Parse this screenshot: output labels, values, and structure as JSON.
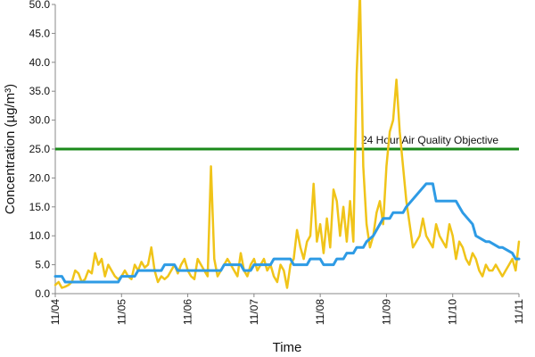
{
  "chart_data": {
    "type": "line",
    "title": "",
    "xlabel": "Time",
    "ylabel": "Concentration (µg/m³)",
    "ylim": [
      0,
      50
    ],
    "yticks": [
      "0.0",
      "5.0",
      "10.0",
      "15.0",
      "20.0",
      "25.0",
      "30.0",
      "35.0",
      "40.0",
      "45.0",
      "50.0"
    ],
    "xticks": [
      "11/04",
      "11/05",
      "11/06",
      "11/07",
      "11/08",
      "11/09",
      "11/10",
      "11/11"
    ],
    "xlim": [
      0,
      7
    ],
    "grid": false,
    "legend": "none",
    "reference_line": {
      "value": 25,
      "label": "24 Hour Air Quality Objective",
      "color": "#1a8a1a"
    },
    "series": [
      {
        "color": "#f0c419",
        "x": [
          0,
          0.05,
          0.1,
          0.15,
          0.2,
          0.25,
          0.3,
          0.35,
          0.4,
          0.45,
          0.5,
          0.55,
          0.6,
          0.65,
          0.7,
          0.75,
          0.8,
          0.85,
          0.9,
          0.95,
          1.0,
          1.05,
          1.1,
          1.15,
          1.2,
          1.25,
          1.3,
          1.35,
          1.4,
          1.45,
          1.5,
          1.55,
          1.6,
          1.65,
          1.7,
          1.75,
          1.8,
          1.85,
          1.9,
          1.95,
          2.0,
          2.05,
          2.1,
          2.15,
          2.2,
          2.25,
          2.3,
          2.35,
          2.4,
          2.45,
          2.5,
          2.55,
          2.6,
          2.65,
          2.7,
          2.75,
          2.8,
          2.85,
          2.9,
          2.95,
          3.0,
          3.05,
          3.1,
          3.15,
          3.2,
          3.25,
          3.3,
          3.35,
          3.4,
          3.45,
          3.5,
          3.55,
          3.6,
          3.65,
          3.7,
          3.75,
          3.8,
          3.85,
          3.9,
          3.95,
          4.0,
          4.05,
          4.1,
          4.15,
          4.2,
          4.25,
          4.3,
          4.35,
          4.4,
          4.45,
          4.5,
          4.55,
          4.6,
          4.65,
          4.7,
          4.75,
          4.8,
          4.85,
          4.9,
          4.95,
          5.0,
          5.05,
          5.1,
          5.15,
          5.2,
          5.25,
          5.3,
          5.35,
          5.4,
          5.45,
          5.5,
          5.55,
          5.6,
          5.65,
          5.7,
          5.75,
          5.8,
          5.85,
          5.9,
          5.95,
          6.0,
          6.05,
          6.1,
          6.15,
          6.2,
          6.25,
          6.3,
          6.35,
          6.4,
          6.45,
          6.5,
          6.55,
          6.6,
          6.65,
          6.7,
          6.75,
          6.8,
          6.85,
          6.9,
          6.95,
          7.0
        ],
        "values": [
          1.5,
          2,
          1,
          1.2,
          1.5,
          2,
          4,
          3.5,
          2,
          2.5,
          4,
          3.5,
          7,
          5,
          6,
          3,
          5,
          4,
          3,
          2.5,
          3,
          4,
          3,
          2.5,
          5,
          4,
          5.5,
          4.5,
          5,
          8,
          4,
          2,
          3,
          2.5,
          3,
          4,
          5,
          3.5,
          5,
          6,
          4,
          3,
          2.5,
          6,
          5,
          4,
          3,
          22,
          6,
          3,
          4,
          5,
          6,
          5,
          4,
          3,
          7,
          4,
          3,
          5,
          6,
          4,
          5,
          6,
          4,
          5,
          3,
          2,
          5,
          4,
          1,
          5,
          6,
          11,
          8,
          6,
          9,
          10,
          19,
          9,
          12,
          7,
          13,
          8,
          18,
          16,
          10,
          15,
          9,
          16,
          9,
          38,
          52,
          22,
          12,
          8,
          10,
          14,
          16,
          12,
          22,
          28,
          30,
          37,
          28,
          22,
          16,
          12,
          8,
          9,
          10,
          13,
          10,
          9,
          8,
          12,
          10,
          9,
          8,
          12,
          10,
          6,
          9,
          8,
          6,
          5,
          7,
          6,
          4,
          3,
          5,
          4,
          4,
          5,
          4,
          3,
          4,
          5,
          6,
          4,
          9
        ]
      },
      {
        "color": "#2e9be5",
        "x": [
          0,
          0.1,
          0.15,
          0.6,
          0.65,
          0.95,
          1.0,
          1.2,
          1.25,
          1.6,
          1.65,
          1.8,
          1.85,
          2.5,
          2.55,
          2.8,
          2.85,
          2.95,
          3.0,
          3.25,
          3.3,
          3.55,
          3.6,
          3.8,
          3.85,
          4.0,
          4.05,
          4.2,
          4.25,
          4.35,
          4.4,
          4.5,
          4.55,
          4.65,
          4.7,
          4.8,
          4.85,
          4.9,
          4.95,
          5.05,
          5.1,
          5.25,
          5.3,
          5.6,
          5.65,
          5.7,
          5.75,
          5.9,
          5.95,
          6.0,
          6.05,
          6.1,
          6.15,
          6.3,
          6.35,
          6.5,
          6.55,
          6.7,
          6.75,
          6.9,
          6.95,
          7.0
        ],
        "values": [
          3,
          3,
          2,
          2,
          2,
          2,
          3,
          3,
          4,
          4,
          5,
          5,
          4,
          4,
          5,
          5,
          4,
          4,
          5,
          5,
          6,
          6,
          5,
          5,
          6,
          6,
          5,
          5,
          6,
          6,
          7,
          7,
          8,
          8,
          9,
          10,
          11,
          12,
          13,
          13,
          14,
          14,
          15,
          19,
          19,
          19,
          16,
          16,
          16,
          16,
          16,
          15,
          14,
          12,
          10,
          9,
          9,
          8,
          8,
          7,
          6,
          6
        ]
      }
    ]
  }
}
